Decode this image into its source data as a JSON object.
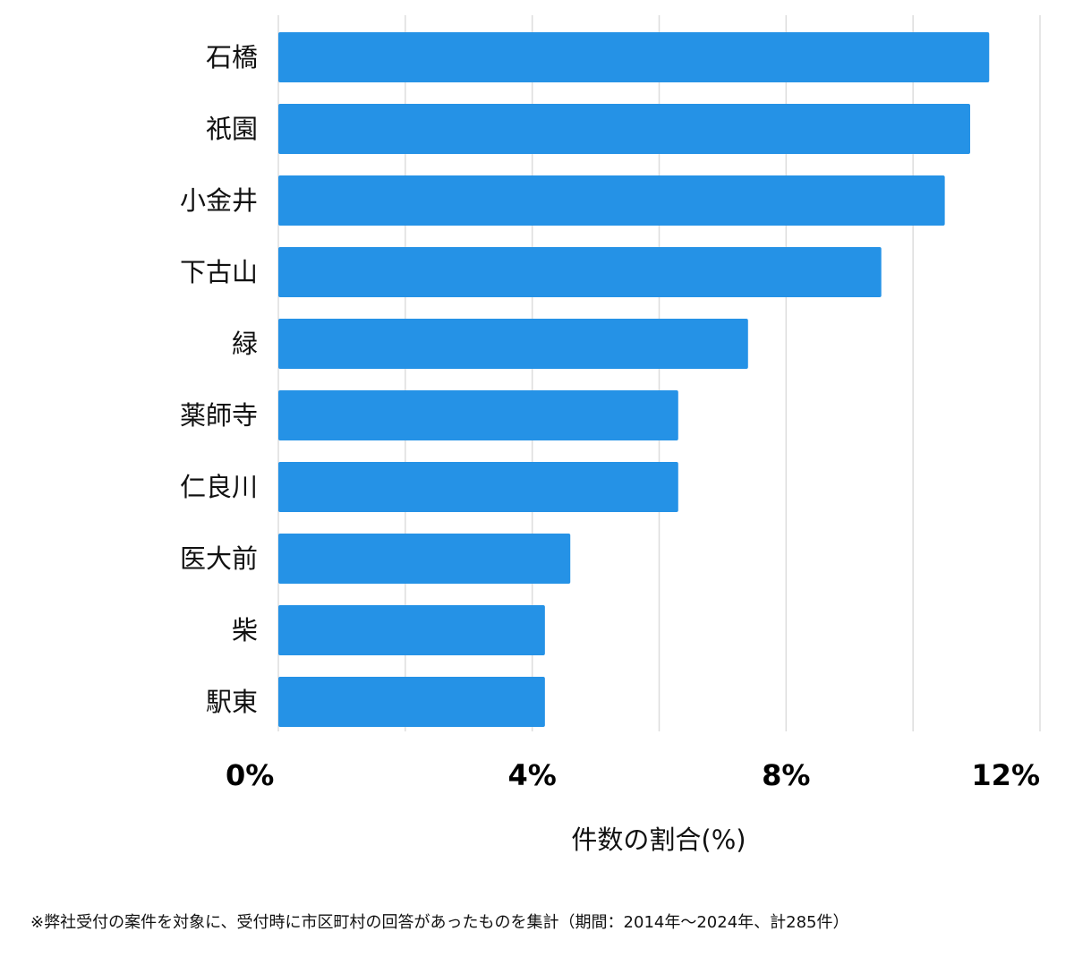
{
  "chart_data": {
    "type": "bar",
    "orientation": "horizontal",
    "categories": [
      "石橋",
      "祇園",
      "小金井",
      "下古山",
      "緑",
      "薬師寺",
      "仁良川",
      "医大前",
      "柴",
      "駅東"
    ],
    "values": [
      11.2,
      10.9,
      10.5,
      9.5,
      7.4,
      6.3,
      6.3,
      4.6,
      4.2,
      4.2
    ],
    "xlim": [
      0,
      12
    ],
    "x_ticks": [
      0,
      4,
      8,
      12
    ],
    "x_tick_labels": [
      "0%",
      "4%",
      "8%",
      "12%"
    ],
    "grid_values": [
      0,
      2,
      4,
      6,
      8,
      10,
      12
    ],
    "xlabel": "件数の割合(%)",
    "ylabel": "",
    "title": "",
    "bar_color": "#2592e6",
    "grid_color": "#dddddd",
    "grid": true
  },
  "footnote": "※弊社受付の案件を対象に、受付時に市区町村の回答があったものを集計（期間：2014年～2024年、計285件）"
}
